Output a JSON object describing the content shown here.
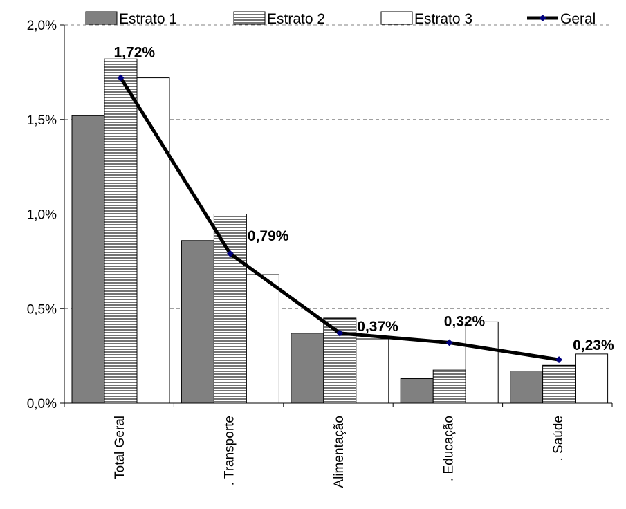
{
  "chart_data": {
    "type": "bar",
    "categories": [
      "Total Geral",
      ". Transporte",
      "Alimentação",
      ". Educação",
      ". Saúde"
    ],
    "series": [
      {
        "name": "Estrato 1",
        "type": "bar",
        "color": "#808080",
        "pattern": "solid",
        "values": [
          1.52,
          0.86,
          0.37,
          0.13,
          0.17
        ]
      },
      {
        "name": "Estrato 2",
        "type": "bar",
        "color": "#c0c0c0",
        "pattern": "horizontal-lines",
        "values": [
          1.82,
          1.0,
          0.45,
          0.175,
          0.2
        ]
      },
      {
        "name": "Estrato 3",
        "type": "bar",
        "color": "#ffffff",
        "pattern": "solid",
        "values": [
          1.72,
          0.68,
          0.34,
          0.43,
          0.26
        ]
      },
      {
        "name": "Geral",
        "type": "line",
        "color": "#000000",
        "marker_color": "#000080",
        "values": [
          1.72,
          0.79,
          0.37,
          0.32,
          0.23
        ]
      }
    ],
    "data_labels": [
      "1,72%",
      "0,79%",
      "0,37%",
      "0,32%",
      "0,23%"
    ],
    "y_ticks": [
      "0,0%",
      "0,5%",
      "1,0%",
      "1,5%",
      "2,0%"
    ],
    "ylim": [
      0,
      2.0
    ],
    "grid": "horizontal dashed",
    "legend_position": "top",
    "title": "",
    "xlabel": "",
    "ylabel": ""
  }
}
